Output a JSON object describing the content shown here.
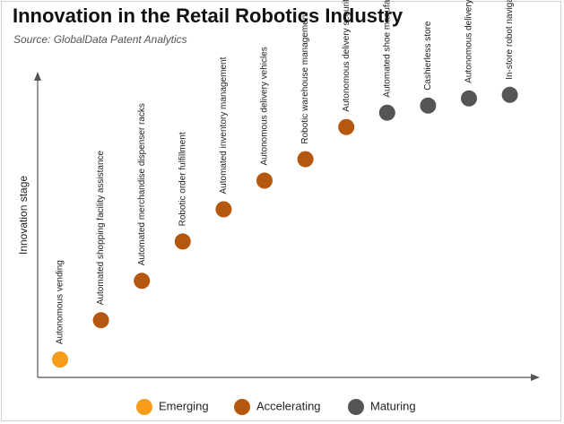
{
  "chart_data": {
    "type": "scatter",
    "title": "Innovation in the Retail Robotics Industry",
    "subtitle": "Source: GlobalData Patent Analytics",
    "ylabel": "Innovation stage",
    "xlabel": "",
    "grid": false,
    "legend_position": "bottom",
    "colors": {
      "Emerging": "#F79B1A",
      "Accelerating": "#B5570E",
      "Maturing": "#555555"
    },
    "legend": [
      {
        "label": "Emerging"
      },
      {
        "label": "Accelerating"
      },
      {
        "label": "Maturing"
      }
    ],
    "points": [
      {
        "label": "Autonomous vending",
        "stage": "Emerging",
        "level": 0.05
      },
      {
        "label": "Automated shopping facility assistance",
        "stage": "Accelerating",
        "level": 0.16
      },
      {
        "label": "Automated merchandise dispenser racks",
        "stage": "Accelerating",
        "level": 0.27
      },
      {
        "label": "Robotic order fulfillment",
        "stage": "Accelerating",
        "level": 0.38
      },
      {
        "label": "Automated inventory management",
        "stage": "Accelerating",
        "level": 0.47
      },
      {
        "label": "Autonomous delivery vehicles",
        "stage": "Accelerating",
        "level": 0.55
      },
      {
        "label": "Robotic warehouse management",
        "stage": "Accelerating",
        "level": 0.61
      },
      {
        "label": "Autonomous delivery security systems",
        "stage": "Accelerating",
        "level": 0.7
      },
      {
        "label": "Automated shoe manufacturing",
        "stage": "Maturing",
        "level": 0.74
      },
      {
        "label": "Cashierless store",
        "stage": "Maturing",
        "level": 0.76
      },
      {
        "label": "Autonomous delivery management",
        "stage": "Maturing",
        "level": 0.78
      },
      {
        "label": "In-store robot navigation",
        "stage": "Maturing",
        "level": 0.79
      }
    ]
  }
}
